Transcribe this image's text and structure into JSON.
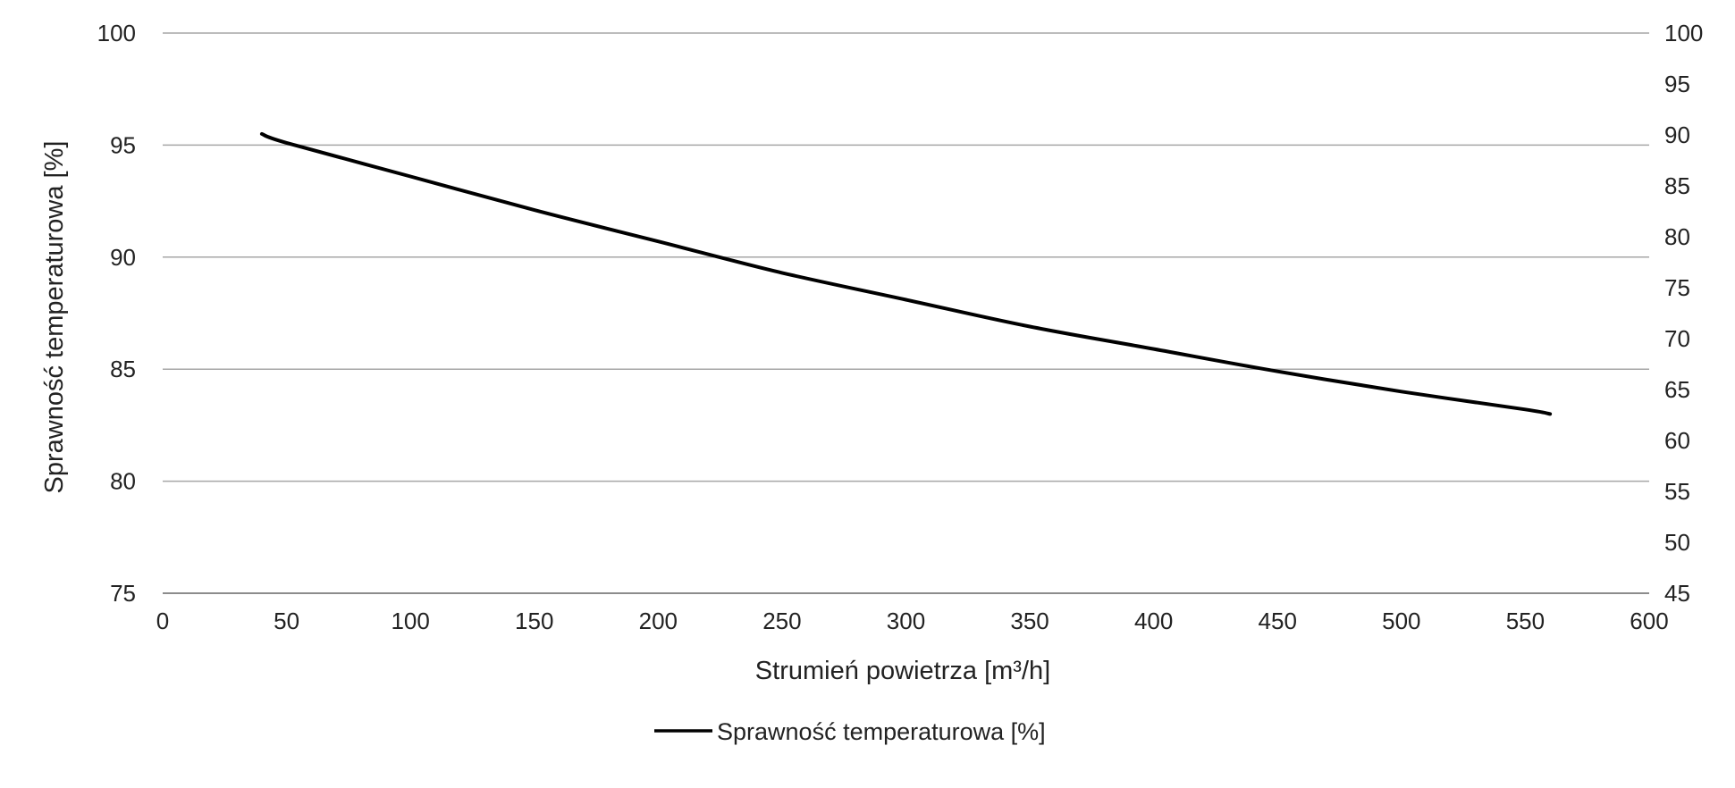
{
  "chart_data": {
    "type": "line",
    "title": "",
    "xlabel": "Strumień powietrza [m³/h]",
    "ylabel": "Sprawność temperaturowa [%]",
    "xlim": [
      0,
      600
    ],
    "ylim": [
      75,
      100
    ],
    "y2lim": [
      45,
      100
    ],
    "x_ticks": [
      "0",
      "50",
      "100",
      "150",
      "200",
      "250",
      "300",
      "350",
      "400",
      "450",
      "500",
      "550",
      "600"
    ],
    "y_ticks": [
      "75",
      "80",
      "85",
      "90",
      "95",
      "100"
    ],
    "y2_ticks": [
      "45",
      "50",
      "55",
      "60",
      "65",
      "70",
      "75",
      "80",
      "85",
      "90",
      "95",
      "100"
    ],
    "grid": true,
    "legend_position": "bottom",
    "series": [
      {
        "name": "Sprawność temperaturowa [%]",
        "color": "#000000",
        "x": [
          40,
          50,
          100,
          150,
          200,
          250,
          300,
          350,
          400,
          450,
          500,
          550,
          560
        ],
        "y": [
          95.5,
          95.1,
          93.6,
          92.1,
          90.7,
          89.3,
          88.1,
          86.9,
          85.9,
          84.9,
          84.0,
          83.2,
          83.0
        ]
      }
    ]
  }
}
